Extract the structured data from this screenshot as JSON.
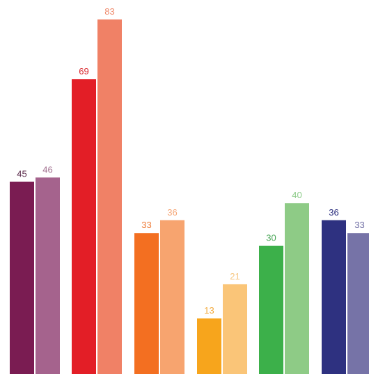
{
  "chart_data": {
    "type": "bar",
    "title": "",
    "xlabel": "",
    "ylabel": "",
    "ylim": [
      0,
      95
    ],
    "grid": false,
    "legend": "none",
    "categories": [
      "",
      "",
      "",
      "",
      "",
      ""
    ],
    "series": [
      {
        "values": [
          45,
          69,
          33,
          13,
          30,
          36
        ],
        "colors": [
          "#7a1c52",
          "#e31e26",
          "#f36f21",
          "#f7a51c",
          "#3cb04a",
          "#2e3180"
        ],
        "label_colors": [
          "#5a2a4a",
          "#d9252b",
          "#ee7a35",
          "#f2a93b",
          "#49a657",
          "#2e3180"
        ]
      },
      {
        "values": [
          46,
          83,
          36,
          21,
          40,
          33
        ],
        "colors": [
          "#a5638d",
          "#f08166",
          "#f7a46f",
          "#fac578",
          "#8ecb86",
          "#7673a7"
        ],
        "label_colors": [
          "#a2708f",
          "#ef8a6c",
          "#f6a676",
          "#f7c782",
          "#8ccb88",
          "#6f6da4"
        ]
      }
    ]
  }
}
